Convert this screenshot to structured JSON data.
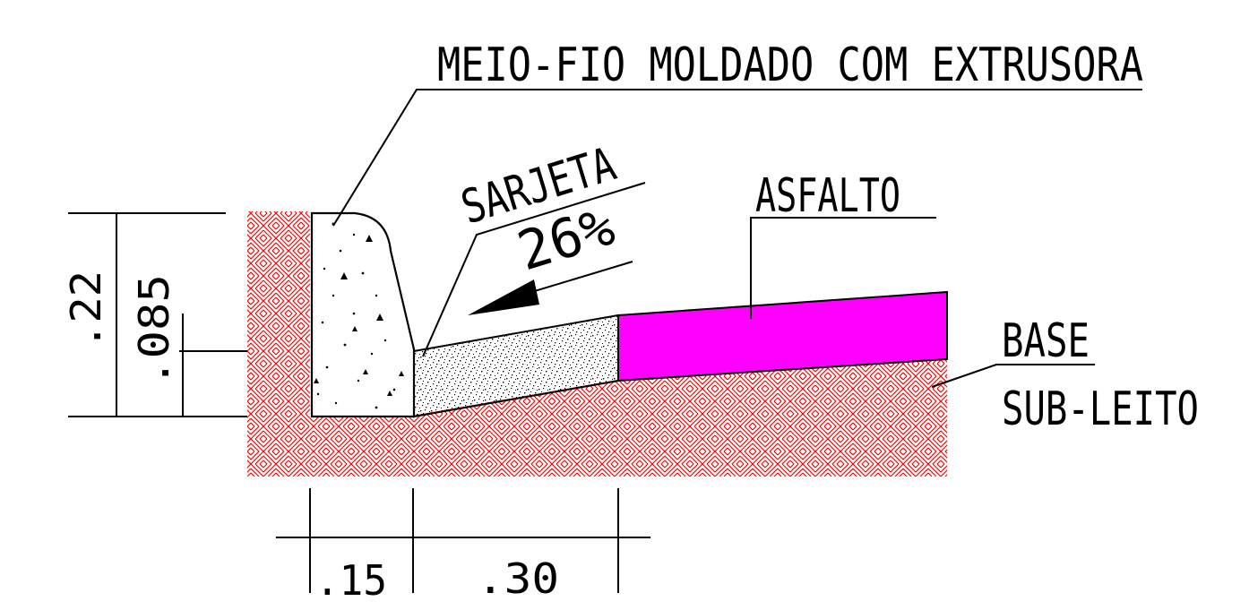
{
  "labels": {
    "curb": "MEIO-FIO MOLDADO COM EXTRUSORA",
    "gutter": "SARJETA",
    "slope": "26%",
    "asphalt": "ASFALTO",
    "base": "BASE",
    "subgrade": "SUB-LEITO"
  },
  "dimensions": {
    "height_total": ".22",
    "height_gutter": ".085",
    "width_curb": ".15",
    "width_gutter": ".30"
  },
  "colors": {
    "subgrade_hatch": "#ff0000",
    "asphalt_fill": "#ff00ff",
    "line": "#000000",
    "background": "#ffffff"
  }
}
